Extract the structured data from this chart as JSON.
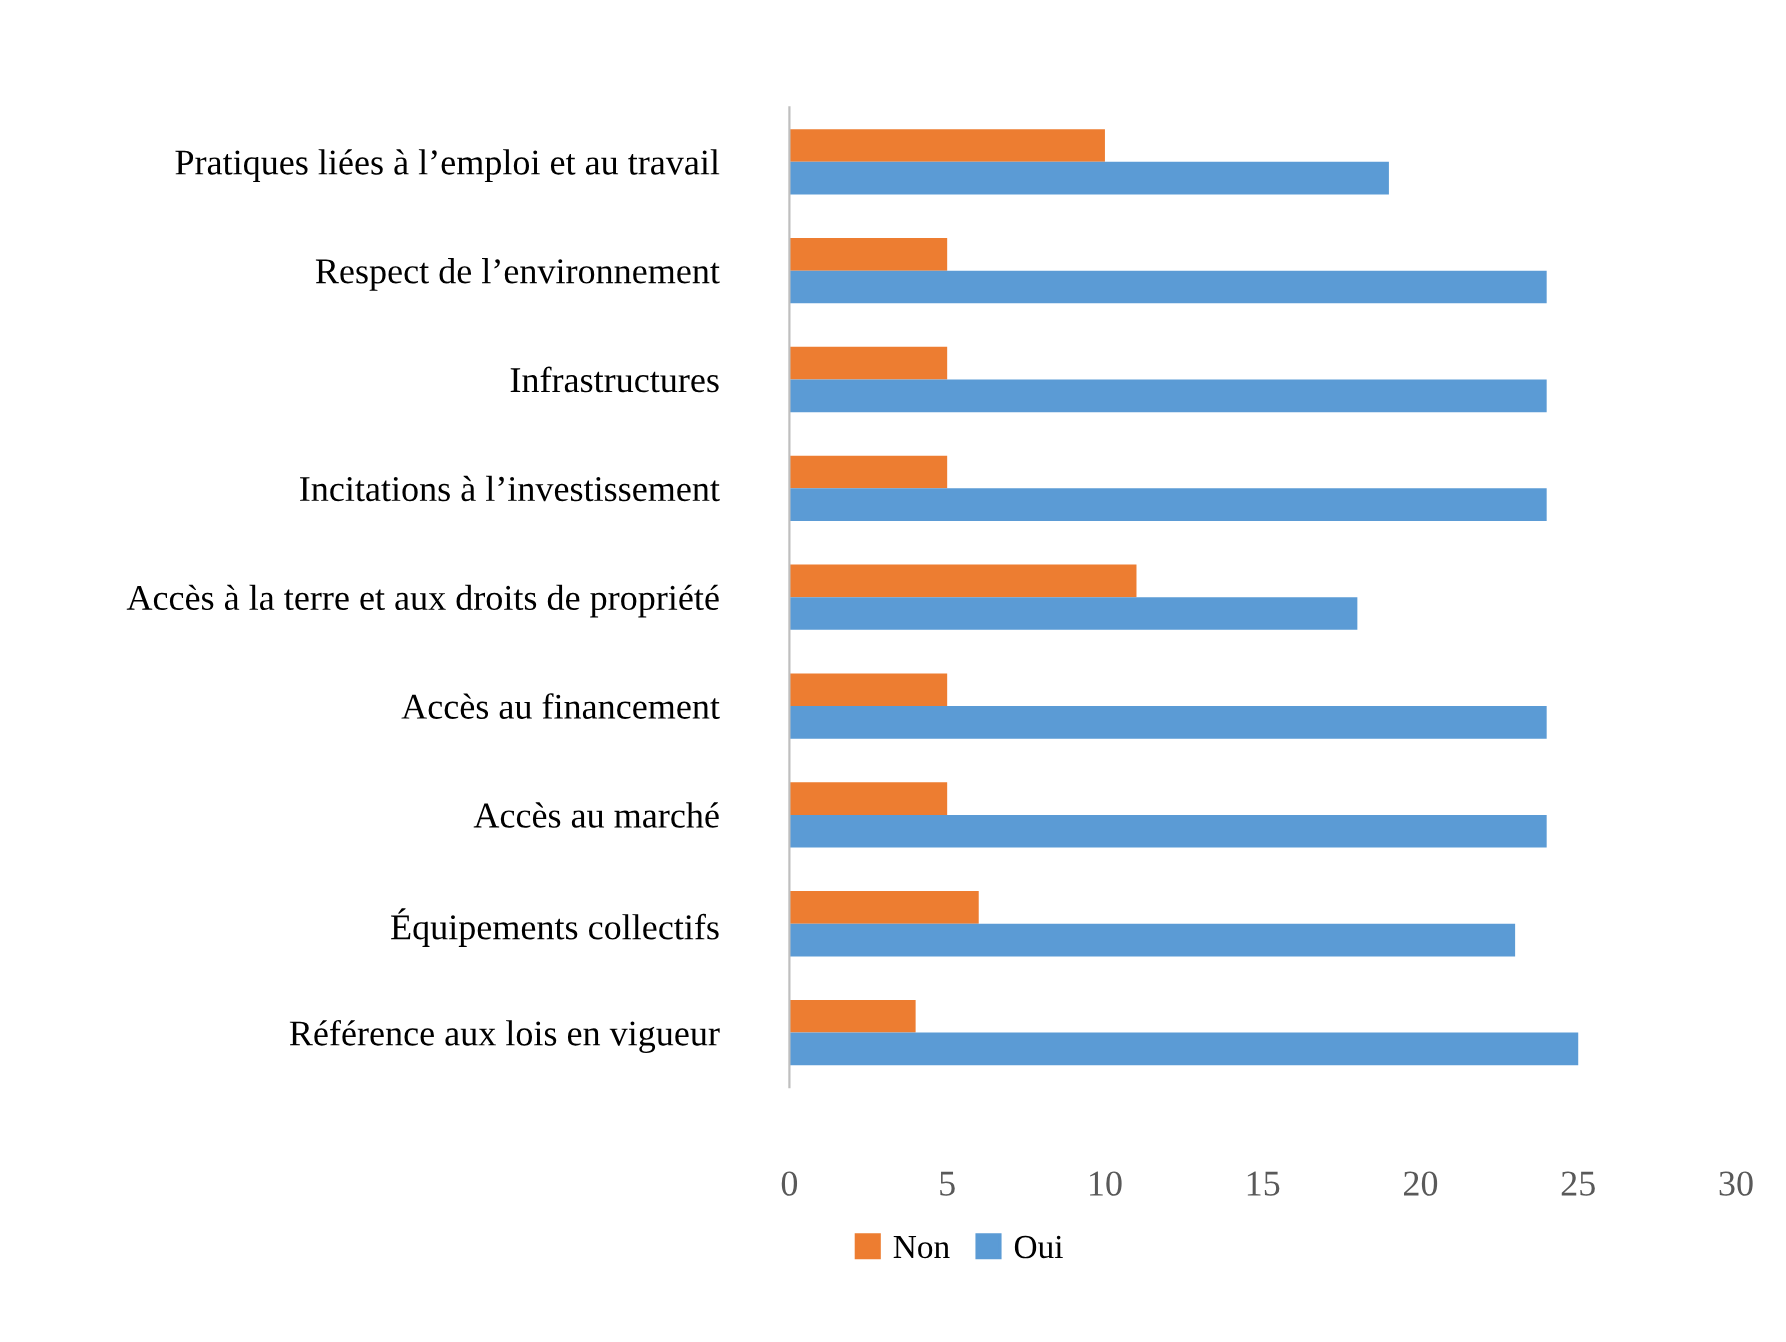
{
  "chart_data": {
    "type": "bar",
    "orientation": "horizontal",
    "categories": [
      "Pratiques liées à l’emploi et au travail",
      "Respect de l’environnement",
      "Infrastructures",
      "Incitations à l’investissement",
      "Accès à la terre et aux droits de propriété",
      "Accès au financement",
      "Accès au marché",
      "Équipements collectifs",
      "Référence aux lois en vigueur"
    ],
    "series": [
      {
        "name": "Non",
        "color": "#ed7d31",
        "values": [
          10,
          5,
          5,
          5,
          11,
          5,
          5,
          6,
          4
        ]
      },
      {
        "name": "Oui",
        "color": "#5b9bd5",
        "values": [
          19,
          24,
          24,
          24,
          18,
          24,
          24,
          23,
          25
        ]
      }
    ],
    "xlim": [
      0,
      30
    ],
    "xticks": [
      0,
      5,
      10,
      15,
      20,
      25,
      30
    ],
    "grid": false,
    "legend": "bottom"
  }
}
